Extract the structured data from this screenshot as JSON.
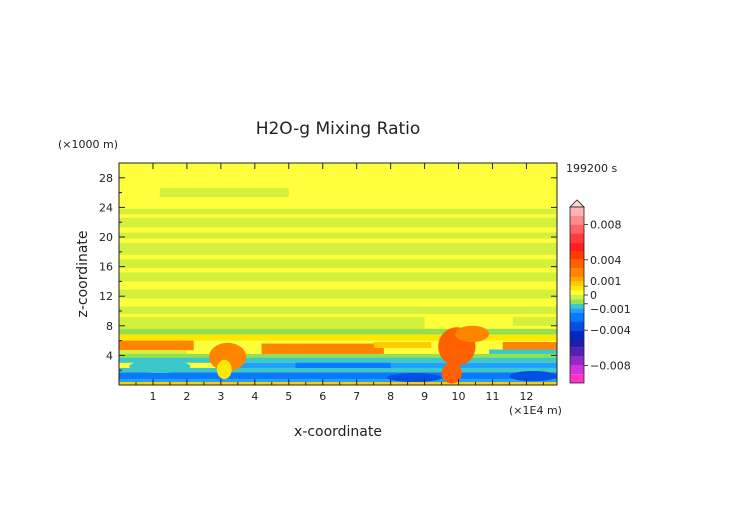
{
  "chart_data": {
    "type": "heatmap",
    "title": "H2O-g Mixing Ratio",
    "time_label": "199200 s",
    "xlabel": "x-coordinate",
    "ylabel": "z-coordinate",
    "x_unit": "(×1E4 m)",
    "y_unit": "(×1000 m)",
    "x_ticks": [
      1,
      2,
      3,
      4,
      5,
      6,
      7,
      8,
      9,
      10,
      11,
      12
    ],
    "y_ticks": [
      4,
      8,
      12,
      16,
      20,
      24,
      28
    ],
    "xlim": [
      0,
      12.9
    ],
    "ylim": [
      0,
      30
    ],
    "colorbar": {
      "labels": [
        {
          "text": "0.008",
          "value": 0.008
        },
        {
          "text": "0.004",
          "value": 0.004
        },
        {
          "text": "0.001",
          "value": 0.001
        },
        {
          "text": "0",
          "value": 0
        },
        {
          "text": "−0.001",
          "value": -0.001
        },
        {
          "text": "−0.004",
          "value": -0.004
        },
        {
          "text": "−0.008",
          "value": -0.008
        }
      ],
      "bands": [
        {
          "color": "#ffb4b4",
          "from": 0.009,
          "to": 0.01
        },
        {
          "color": "#ff8c8c",
          "from": 0.008,
          "to": 0.009
        },
        {
          "color": "#ff6464",
          "from": 0.007,
          "to": 0.008
        },
        {
          "color": "#ff3c3c",
          "from": 0.006,
          "to": 0.007
        },
        {
          "color": "#ff1e1e",
          "from": 0.005,
          "to": 0.006
        },
        {
          "color": "#ff3a00",
          "from": 0.004,
          "to": 0.005
        },
        {
          "color": "#ff6000",
          "from": 0.003,
          "to": 0.004
        },
        {
          "color": "#ff8400",
          "from": 0.002,
          "to": 0.003
        },
        {
          "color": "#ffa500",
          "from": 0.0015,
          "to": 0.002
        },
        {
          "color": "#ffcc00",
          "from": 0.001,
          "to": 0.0015
        },
        {
          "color": "#ffe800",
          "from": 0.0005,
          "to": 0.001
        },
        {
          "color": "#ffff3c",
          "from": 0.0,
          "to": 0.0005
        },
        {
          "color": "#d2f03c",
          "from": -0.0005,
          "to": 0.0
        },
        {
          "color": "#96e050",
          "from": -0.001,
          "to": -0.0005
        },
        {
          "color": "#3cc8c8",
          "from": -0.0015,
          "to": -0.001
        },
        {
          "color": "#1ea0ff",
          "from": -0.002,
          "to": -0.0015
        },
        {
          "color": "#0a78ff",
          "from": -0.003,
          "to": -0.002
        },
        {
          "color": "#0050e6",
          "from": -0.004,
          "to": -0.003
        },
        {
          "color": "#0028c8",
          "from": -0.005,
          "to": -0.004
        },
        {
          "color": "#1e1eaa",
          "from": -0.006,
          "to": -0.005
        },
        {
          "color": "#5a1eb4",
          "from": -0.007,
          "to": -0.006
        },
        {
          "color": "#9628c8",
          "from": -0.008,
          "to": -0.007
        },
        {
          "color": "#d232dc",
          "from": -0.009,
          "to": -0.008
        },
        {
          "color": "#ff32c8",
          "from": -0.01,
          "to": -0.009
        }
      ],
      "range": [
        -0.01,
        0.01
      ]
    },
    "background_value": 0.0002,
    "regions": [
      {
        "kind": "band",
        "z0": 25.4,
        "z1": 26.6,
        "x0": 1.2,
        "x1": 5.0,
        "value": -0.0003
      },
      {
        "kind": "band",
        "z0": 23.1,
        "z1": 23.8,
        "x0": 0.0,
        "x1": 12.9,
        "value": -0.0003
      },
      {
        "kind": "band",
        "z0": 21.3,
        "z1": 22.6,
        "x0": 0.0,
        "x1": 12.9,
        "value": -0.0003
      },
      {
        "kind": "band",
        "z0": 19.8,
        "z1": 20.6,
        "x0": 0.0,
        "x1": 12.9,
        "value": -0.0003
      },
      {
        "kind": "band",
        "z0": 17.6,
        "z1": 19.2,
        "x0": 0.0,
        "x1": 12.9,
        "value": -0.0003
      },
      {
        "kind": "band",
        "z0": 15.8,
        "z1": 17.0,
        "x0": 0.0,
        "x1": 12.9,
        "value": -0.0003
      },
      {
        "kind": "band",
        "z0": 14.0,
        "z1": 15.2,
        "x0": 0.0,
        "x1": 12.9,
        "value": -0.0003
      },
      {
        "kind": "band",
        "z0": 11.7,
        "z1": 12.9,
        "x0": 0.0,
        "x1": 12.9,
        "value": -0.0003
      },
      {
        "kind": "band",
        "z0": 9.6,
        "z1": 10.6,
        "x0": 0.0,
        "x1": 12.9,
        "value": -0.0003
      },
      {
        "kind": "band",
        "z0": 7.6,
        "z1": 9.2,
        "x0": 0.0,
        "x1": 9.0,
        "value": -0.0003
      },
      {
        "kind": "band",
        "z0": 8.0,
        "z1": 9.2,
        "x0": 11.6,
        "x1": 12.9,
        "value": -0.0003
      },
      {
        "kind": "band",
        "z0": 6.8,
        "z1": 7.6,
        "x0": 0.0,
        "x1": 12.9,
        "value": -0.0006
      },
      {
        "kind": "band",
        "z0": 6.0,
        "z1": 6.8,
        "x0": 0.0,
        "x1": 12.9,
        "value": 0.0007
      },
      {
        "kind": "band",
        "z0": 4.7,
        "z1": 6.0,
        "x0": 0.0,
        "x1": 2.2,
        "value": 0.0025
      },
      {
        "kind": "band",
        "z0": 4.2,
        "z1": 4.7,
        "x0": 0.0,
        "x1": 2.0,
        "value": -0.0004
      },
      {
        "kind": "band",
        "z0": 3.7,
        "z1": 4.2,
        "x0": 0.0,
        "x1": 12.9,
        "value": -0.0008
      },
      {
        "kind": "band",
        "z0": 3.0,
        "z1": 3.7,
        "x0": 0.0,
        "x1": 12.9,
        "value": -0.0012
      },
      {
        "kind": "band",
        "z0": 2.3,
        "z1": 3.0,
        "x0": 3.2,
        "x1": 12.9,
        "value": -0.0016
      },
      {
        "kind": "band",
        "z0": 1.7,
        "z1": 2.3,
        "x0": 0.0,
        "x1": 12.9,
        "value": -0.0012
      },
      {
        "kind": "band",
        "z0": 0.8,
        "z1": 1.7,
        "x0": 0.0,
        "x1": 12.9,
        "value": -0.0025
      },
      {
        "kind": "band",
        "z0": 0.4,
        "z1": 0.8,
        "x0": 0.0,
        "x1": 12.9,
        "value": -0.0016
      },
      {
        "kind": "band",
        "z0": 0.0,
        "z1": 0.4,
        "x0": 0.0,
        "x1": 12.9,
        "value": 0.0012
      },
      {
        "kind": "band",
        "z0": 4.2,
        "z1": 5.6,
        "x0": 4.2,
        "x1": 7.8,
        "value": 0.0025
      },
      {
        "kind": "band",
        "z0": 5.0,
        "z1": 5.8,
        "x0": 7.5,
        "x1": 9.2,
        "value": 0.0012
      },
      {
        "kind": "band",
        "z0": 4.8,
        "z1": 5.8,
        "x0": 11.3,
        "x1": 12.9,
        "value": 0.0025
      },
      {
        "kind": "band",
        "z0": 4.2,
        "z1": 4.8,
        "x0": 10.9,
        "x1": 12.9,
        "value": -0.0012
      },
      {
        "kind": "band",
        "z0": 2.3,
        "z1": 3.0,
        "x0": 5.2,
        "x1": 8.0,
        "value": -0.0025
      },
      {
        "kind": "blob",
        "cx": 3.2,
        "cz": 3.8,
        "rx": 0.55,
        "rz": 1.9,
        "value": 0.0025
      },
      {
        "kind": "blob",
        "cx": 3.1,
        "cz": 2.1,
        "rx": 0.22,
        "rz": 1.3,
        "value": 0.0007
      },
      {
        "kind": "blob",
        "cx": 9.95,
        "cz": 5.2,
        "rx": 0.55,
        "rz": 2.6,
        "value": 0.0035
      },
      {
        "kind": "blob",
        "cx": 10.4,
        "cz": 6.9,
        "rx": 0.5,
        "rz": 1.1,
        "value": 0.0025
      },
      {
        "kind": "blob",
        "cx": 9.8,
        "cz": 1.6,
        "rx": 0.3,
        "rz": 1.4,
        "value": 0.0035
      },
      {
        "kind": "blob",
        "cx": 1.2,
        "cz": 2.5,
        "rx": 0.9,
        "rz": 0.9,
        "value": -0.0012
      },
      {
        "kind": "blob",
        "cx": 8.7,
        "cz": 1.0,
        "rx": 0.8,
        "rz": 0.6,
        "value": -0.0035
      },
      {
        "kind": "blob",
        "cx": 12.2,
        "cz": 1.2,
        "rx": 0.7,
        "rz": 0.7,
        "value": -0.0035
      }
    ]
  }
}
